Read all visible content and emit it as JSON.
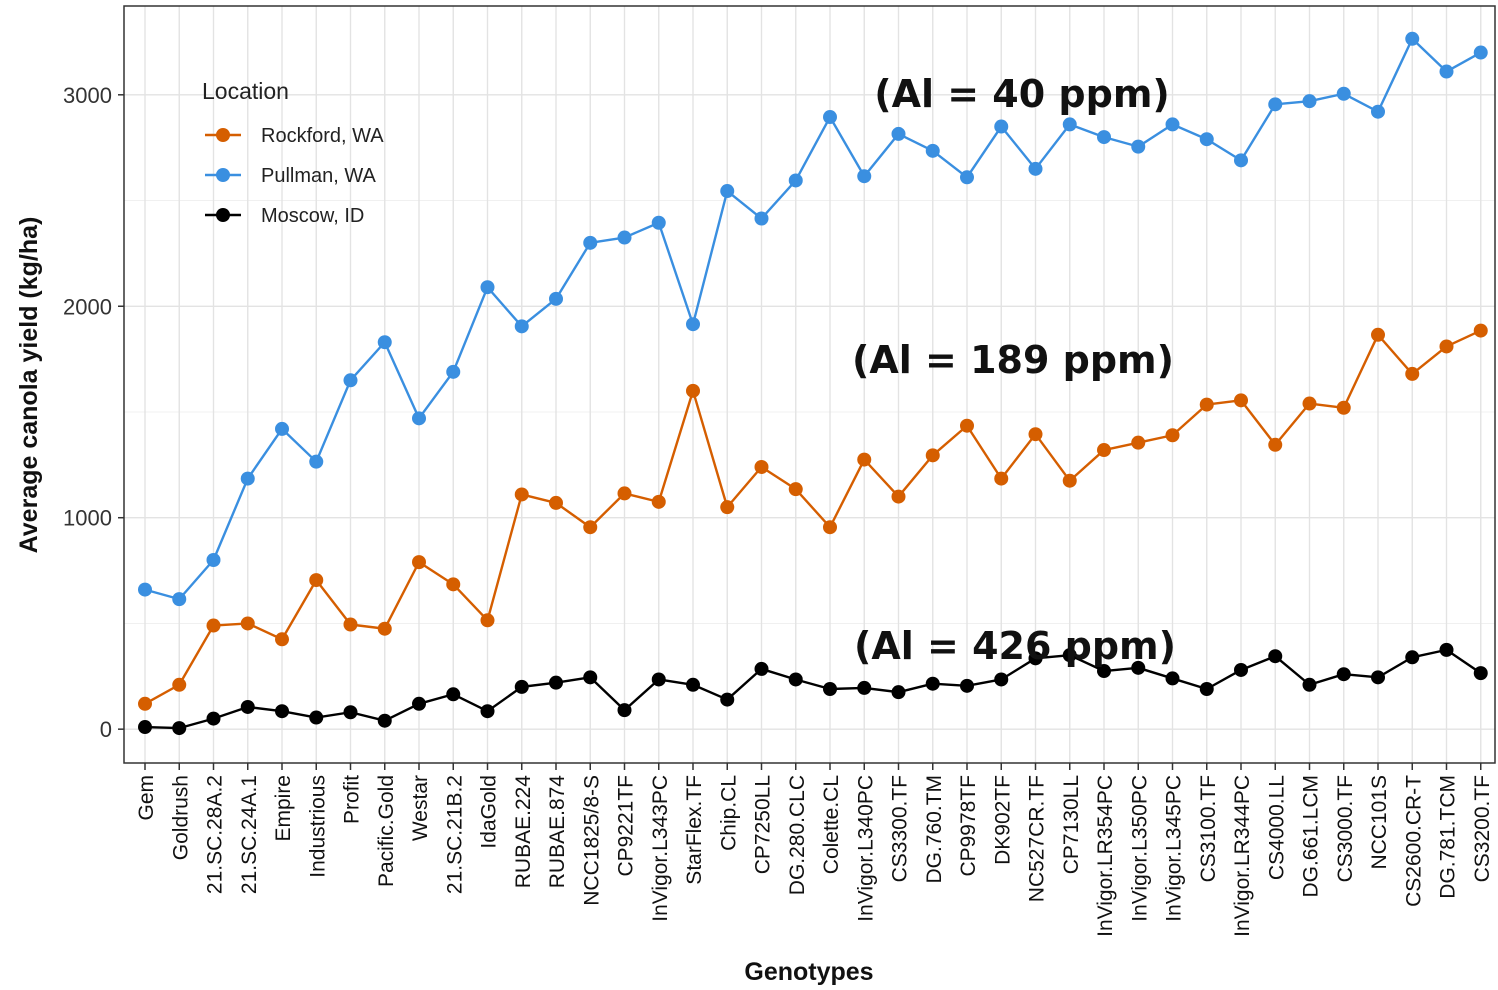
{
  "chart_data": {
    "type": "line",
    "xlabel": "Genotypes",
    "ylabel": "Average canola yield (kg/ha)",
    "ylim": [
      -160,
      3420
    ],
    "yticks": [
      0,
      1000,
      2000,
      3000
    ],
    "grid": true,
    "legend": {
      "title": "Location",
      "placement": "top-left",
      "entries": [
        "Rockford, WA",
        "Pullman, WA",
        "Moscow, ID"
      ]
    },
    "categories": [
      "Gem",
      "Goldrush",
      "21.SC.28A.2",
      "21.SC.24A.1",
      "Empire",
      "Industrious",
      "Profit",
      "Pacific.Gold",
      "Westar",
      "21.SC.21B.2",
      "IdaGold",
      "RUBAE.224",
      "RUBAE.874",
      "NCC1825/8-S",
      "CP9221TF",
      "InVigor.L343PC",
      "StarFlex.TF",
      "Chip.CL",
      "CP7250LL",
      "DG.280.CLC",
      "Colette.CL",
      "InVigor.L340PC",
      "CS3300.TF",
      "DG.760.TM",
      "CP9978TF",
      "DK902TF",
      "NC527CR.TF",
      "CP7130LL",
      "InVigor.LR354PC",
      "InVigor.L350PC",
      "InVigor.L345PC",
      "CS3100.TF",
      "InVigor.LR344PC",
      "CS4000.LL",
      "DG.661.LCM",
      "CS3000.TF",
      "NCC101S",
      "CS2600.CR-T",
      "DG.781.TCM",
      "CS3200.TF"
    ],
    "series": [
      {
        "name": "Rockford, WA",
        "color": "#D55E00",
        "values": [
          120,
          210,
          490,
          500,
          425,
          705,
          495,
          475,
          790,
          685,
          515,
          1110,
          1070,
          955,
          1115,
          1075,
          1600,
          1050,
          1240,
          1135,
          955,
          1275,
          1100,
          1295,
          1435,
          1185,
          1395,
          1175,
          1320,
          1355,
          1390,
          1535,
          1555,
          1345,
          1540,
          1520,
          1865,
          1680,
          1810,
          1885
        ]
      },
      {
        "name": "Pullman, WA",
        "color": "#3A8FE0",
        "values": [
          660,
          615,
          800,
          1185,
          1420,
          1265,
          1650,
          1830,
          1470,
          1690,
          2090,
          1905,
          2035,
          2300,
          2325,
          2395,
          1915,
          2545,
          2415,
          2595,
          2895,
          2615,
          2815,
          2735,
          2610,
          2850,
          2650,
          2860,
          2800,
          2755,
          2860,
          2790,
          2690,
          2955,
          2970,
          3005,
          2920,
          3265,
          3110,
          3200
        ]
      },
      {
        "name": "Moscow, ID",
        "color": "#000000",
        "values": [
          10,
          5,
          50,
          105,
          85,
          55,
          80,
          40,
          120,
          165,
          85,
          200,
          220,
          245,
          90,
          235,
          210,
          140,
          285,
          235,
          190,
          195,
          175,
          215,
          205,
          235,
          335,
          350,
          275,
          290,
          240,
          190,
          280,
          345,
          210,
          260,
          245,
          340,
          375,
          265
        ]
      }
    ],
    "annotations": [
      {
        "text": "(Al = 40 ppm)"
      },
      {
        "text": "(Al = 189 ppm)"
      },
      {
        "text": "(Al = 426 ppm)"
      }
    ]
  }
}
